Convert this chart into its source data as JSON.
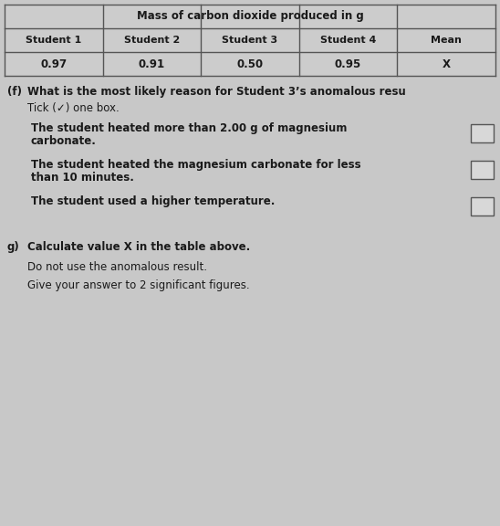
{
  "table_title": "Mass of carbon dioxide produced in g",
  "table_headers": [
    "Student 1",
    "Student 2",
    "Student 3",
    "Student 4",
    "Mean"
  ],
  "table_values": [
    "0.97",
    "0.91",
    "0.50",
    "0.95",
    "X"
  ],
  "question_prefix_f": "(f)",
  "question_f_line1": "What is the most likely reason for Student 3’s anomalous resu",
  "tick_line": "Tick (✓) one box.",
  "option1_line1": "The student heated more than 2.00 g of magnesium",
  "option1_line2": "carbonate.",
  "option2_line1": "The student heated the magnesium carbonate for less",
  "option2_line2": "than 10 minutes.",
  "option3_line1": "The student used a higher temperature.",
  "question_prefix_g": "g)",
  "question_g_line1": "Calculate value X in the table above.",
  "question_g_line2": "Do not use the anomalous result.",
  "question_g_line3": "Give your answer to 2 significant figures.",
  "bg_color": "#c8c8c8",
  "text_color": "#1a1a1a",
  "box_border": "#555555",
  "box_face": "#d8d8d8",
  "table_line_color": "#555555",
  "table_face": "#cccccc"
}
